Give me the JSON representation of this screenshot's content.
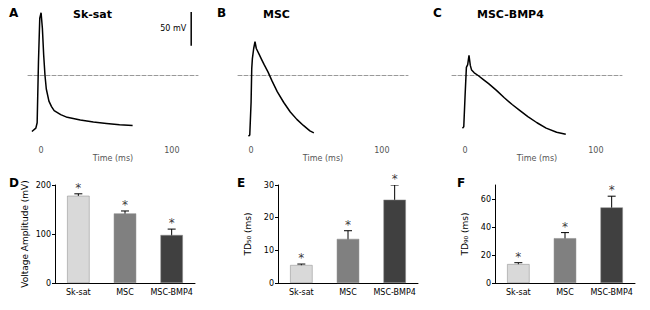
{
  "chart_data": [
    {
      "panel": "A",
      "type": "line",
      "title": "Sk-sat",
      "x_label": "Time (ms)",
      "x": [
        -7,
        -4,
        -3,
        -2,
        -1,
        0,
        1,
        2,
        3,
        4,
        6,
        8,
        10,
        15,
        20,
        30,
        40,
        50,
        60,
        70
      ],
      "values": [
        -83,
        -78,
        -70,
        20,
        85,
        93,
        70,
        30,
        0,
        -20,
        -38,
        -46,
        -52,
        -58,
        -62,
        -66,
        -69,
        -71,
        -73,
        -74
      ],
      "xlim": [
        -10,
        120
      ],
      "xticks": [
        0,
        100
      ],
      "ylim": [
        -100,
        100
      ],
      "tick_labels": "x",
      "color": "#000000",
      "line_style": "solid",
      "grid": false,
      "scale_bar": {
        "value": 50,
        "label": "50 mV"
      }
    },
    {
      "panel": "B",
      "type": "line",
      "title": "MSC",
      "x_label": "Time (ms)",
      "x": [
        -2,
        -1,
        0,
        0.5,
        1,
        2,
        3,
        4,
        6,
        8,
        10,
        13,
        16,
        20,
        25,
        30,
        35,
        40,
        45,
        48
      ],
      "values": [
        -90,
        -88,
        -40,
        10,
        25,
        40,
        50,
        40,
        32,
        24,
        16,
        5,
        -8,
        -24,
        -40,
        -54,
        -65,
        -74,
        -82,
        -85
      ],
      "xlim": [
        -10,
        120
      ],
      "xticks": [
        0,
        100
      ],
      "ylim": [
        -100,
        100
      ],
      "tick_labels": "x",
      "color": "#000000",
      "line_style": "solid",
      "grid": false
    },
    {
      "panel": "C",
      "type": "line",
      "title": "MSC-BMP4",
      "x_label": "Time (ms)",
      "x": [
        -2,
        -1,
        0,
        1,
        2,
        3,
        4,
        5,
        7,
        10,
        14,
        18,
        24,
        30,
        36,
        42,
        48,
        55,
        62,
        70,
        77
      ],
      "values": [
        -78,
        -76,
        -30,
        12,
        16,
        30,
        15,
        8,
        4,
        0,
        -6,
        -12,
        -22,
        -33,
        -43,
        -52,
        -61,
        -70,
        -78,
        -84,
        -87
      ],
      "xlim": [
        -10,
        120
      ],
      "xticks": [
        0,
        100
      ],
      "ylim": [
        -100,
        100
      ],
      "tick_labels": "x",
      "color": "#000000",
      "line_style": "solid",
      "grid": false
    },
    {
      "panel": "D",
      "type": "bar",
      "ylabel": "Voltage Amplitude (mV)",
      "categories": [
        "Sk-sat",
        "MSC",
        "MSC-BMP4"
      ],
      "values": [
        178,
        142,
        98
      ],
      "errors": [
        4,
        5,
        12
      ],
      "colors": [
        "#d9d9d9",
        "#808080",
        "#404040"
      ],
      "annotations": [
        "*",
        "*",
        "*"
      ],
      "ylim": [
        0,
        200
      ],
      "yticks": [
        0,
        100,
        200
      ],
      "grid": false
    },
    {
      "panel": "E",
      "type": "bar",
      "ylabel": "TD₅₀ (ms)",
      "categories": [
        "Sk-sat",
        "MSC",
        "MSC-BMP4"
      ],
      "values": [
        5.5,
        13.5,
        25.5
      ],
      "errors": [
        0.3,
        2.5,
        4.5
      ],
      "colors": [
        "#d9d9d9",
        "#808080",
        "#404040"
      ],
      "annotations": [
        "*",
        "*",
        "*"
      ],
      "ylim": [
        0,
        30
      ],
      "yticks": [
        0,
        10,
        20,
        30
      ],
      "grid": false
    },
    {
      "panel": "F",
      "type": "bar",
      "ylabel": "TD₉₀ (ms)",
      "categories": [
        "Sk-sat",
        "MSC",
        "MSC-BMP4"
      ],
      "values": [
        13.5,
        32,
        54
      ],
      "errors": [
        1,
        4,
        8
      ],
      "colors": [
        "#d9d9d9",
        "#808080",
        "#404040"
      ],
      "annotations": [
        "*",
        "*",
        "*"
      ],
      "ylim": [
        0,
        70
      ],
      "yticks": [
        0,
        20,
        40,
        60
      ],
      "grid": false
    }
  ]
}
